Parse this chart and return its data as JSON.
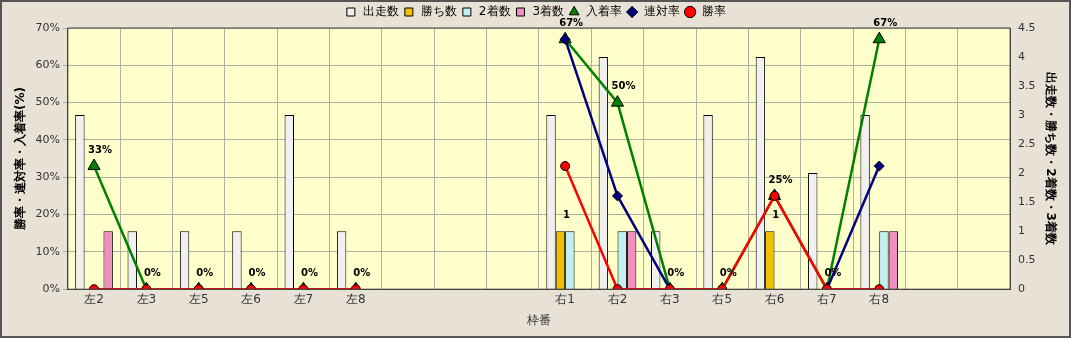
{
  "chart_data": {
    "type": "bar",
    "categories": [
      "左2",
      "左3",
      "左5",
      "左6",
      "左7",
      "左8",
      null,
      null,
      null,
      "右1",
      "右2",
      "右3",
      "右5",
      "右6",
      "右7",
      "右8",
      null,
      null
    ],
    "xlabel": "枠番",
    "ylabel": "勝率・連対率・入着率(%)",
    "y2label": "出走数・勝ち数・2着数・3着数",
    "series": [
      {
        "name": "出走数",
        "axis": "y2",
        "color": "#f0f0f0",
        "values": [
          3,
          1,
          1,
          1,
          3,
          1,
          null,
          null,
          null,
          3,
          4,
          1,
          3,
          4,
          2,
          3,
          null,
          null
        ]
      },
      {
        "name": "勝ち数",
        "axis": "y2",
        "color": "#f0c000",
        "values": [
          0,
          0,
          0,
          0,
          0,
          0,
          null,
          null,
          null,
          1,
          0,
          0,
          0,
          1,
          0,
          0,
          null,
          null
        ],
        "value_labels": [
          null,
          null,
          null,
          null,
          null,
          null,
          null,
          null,
          null,
          "1",
          null,
          null,
          null,
          "1",
          null,
          null,
          null,
          null
        ]
      },
      {
        "name": "2着数",
        "axis": "y2",
        "color": "#c0f0f0",
        "values": [
          0,
          0,
          0,
          0,
          0,
          0,
          null,
          null,
          null,
          1,
          1,
          0,
          0,
          0,
          0,
          1,
          null,
          null
        ]
      },
      {
        "name": "3着数",
        "axis": "y2",
        "color": "#f090c0",
        "values": [
          1,
          0,
          0,
          0,
          0,
          0,
          null,
          null,
          null,
          0,
          1,
          0,
          0,
          0,
          0,
          1,
          null,
          null
        ]
      },
      {
        "name": "入着率",
        "type": "line",
        "marker": "triangle",
        "color": "#008000",
        "values": [
          33,
          0,
          0,
          0,
          0,
          0,
          null,
          null,
          null,
          67,
          50,
          0,
          0,
          25,
          0,
          67,
          null,
          null
        ],
        "value_labels": [
          "33%",
          "0%",
          "0%",
          "0%",
          "0%",
          "0%",
          null,
          null,
          null,
          "67%",
          "50%",
          "0%",
          "0%",
          "25%",
          "0%",
          "67%",
          null,
          null
        ]
      },
      {
        "name": "連対率",
        "type": "line",
        "marker": "diamond",
        "color": "#000080",
        "values": [
          null,
          null,
          null,
          null,
          null,
          null,
          null,
          null,
          null,
          67,
          25,
          0,
          null,
          null,
          0,
          33,
          null,
          null
        ]
      },
      {
        "name": "勝率",
        "type": "line",
        "marker": "circle",
        "color": "#ff0000",
        "values": [
          0,
          0,
          0,
          0,
          0,
          0,
          null,
          null,
          null,
          33,
          0,
          0,
          0,
          25,
          0,
          0,
          null,
          null
        ]
      }
    ],
    "ylim": [
      0,
      70
    ],
    "yticks": [
      {
        "value": 0,
        "label": "0%"
      },
      {
        "value": 10,
        "label": "10%"
      },
      {
        "value": 20,
        "label": "20%"
      },
      {
        "value": 30,
        "label": "30%"
      },
      {
        "value": 40,
        "label": "40%"
      },
      {
        "value": 50,
        "label": "50%"
      },
      {
        "value": 60,
        "label": "60%"
      },
      {
        "value": 70,
        "label": "70%"
      }
    ],
    "y2lim": [
      0,
      4.5
    ],
    "y2ticks": [
      0,
      0.5,
      1,
      1.5,
      2,
      2.5,
      3,
      3.5,
      4,
      4.5
    ],
    "grid": true,
    "legend": "top"
  }
}
